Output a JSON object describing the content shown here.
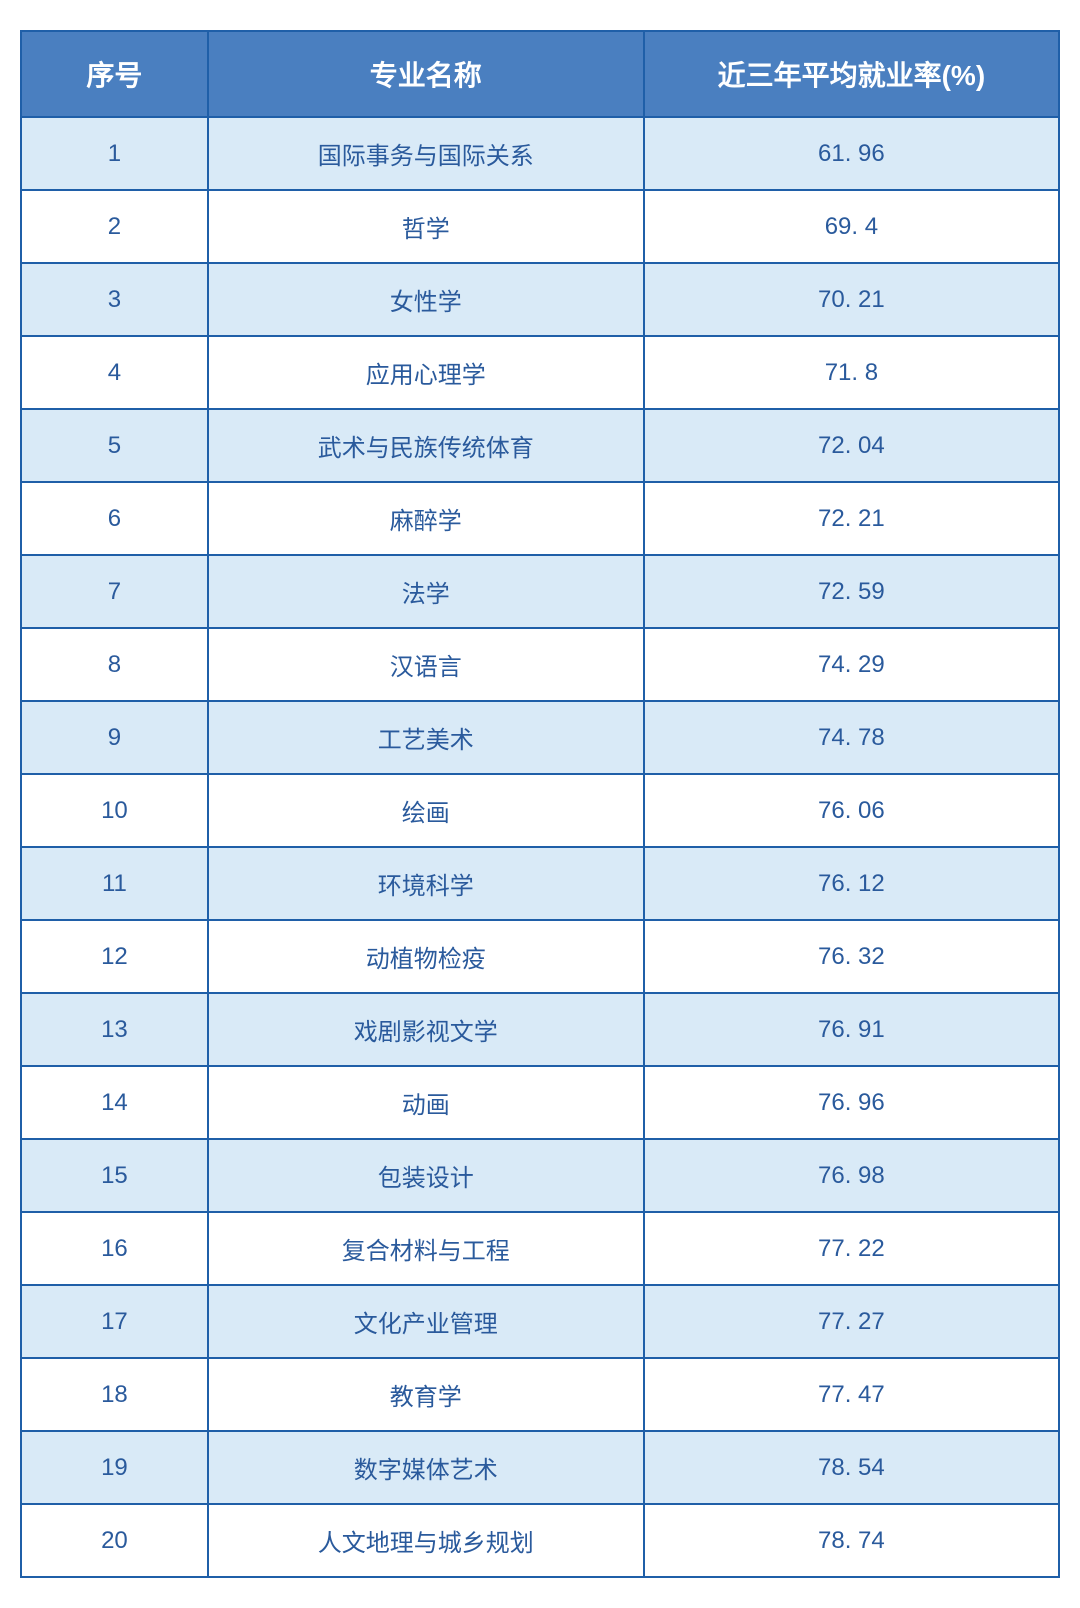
{
  "table": {
    "type": "table",
    "border_color": "#1f5fa8",
    "header_bg": "#4a7fc0",
    "header_text_color": "#ffffff",
    "row_odd_bg": "#d9eaf7",
    "row_even_bg": "#ffffff",
    "cell_text_color": "#2a5a9c",
    "header_fontsize": 28,
    "cell_fontsize": 24,
    "columns": [
      {
        "label": "序号",
        "width": "18%"
      },
      {
        "label": "专业名称",
        "width": "42%"
      },
      {
        "label": "近三年平均就业率(%)",
        "width": "40%"
      }
    ],
    "rows": [
      {
        "seq": "1",
        "name": "国际事务与国际关系",
        "rate": "61. 96"
      },
      {
        "seq": "2",
        "name": "哲学",
        "rate": "69. 4"
      },
      {
        "seq": "3",
        "name": "女性学",
        "rate": "70. 21"
      },
      {
        "seq": "4",
        "name": "应用心理学",
        "rate": "71. 8"
      },
      {
        "seq": "5",
        "name": "武术与民族传统体育",
        "rate": "72. 04"
      },
      {
        "seq": "6",
        "name": "麻醉学",
        "rate": "72. 21"
      },
      {
        "seq": "7",
        "name": "法学",
        "rate": "72. 59"
      },
      {
        "seq": "8",
        "name": "汉语言",
        "rate": "74. 29"
      },
      {
        "seq": "9",
        "name": "工艺美术",
        "rate": "74. 78"
      },
      {
        "seq": "10",
        "name": "绘画",
        "rate": "76. 06"
      },
      {
        "seq": "11",
        "name": "环境科学",
        "rate": "76. 12"
      },
      {
        "seq": "12",
        "name": "动植物检疫",
        "rate": "76. 32"
      },
      {
        "seq": "13",
        "name": "戏剧影视文学",
        "rate": "76. 91"
      },
      {
        "seq": "14",
        "name": "动画",
        "rate": "76. 96"
      },
      {
        "seq": "15",
        "name": "包装设计",
        "rate": "76. 98"
      },
      {
        "seq": "16",
        "name": "复合材料与工程",
        "rate": "77. 22"
      },
      {
        "seq": "17",
        "name": "文化产业管理",
        "rate": "77. 27"
      },
      {
        "seq": "18",
        "name": "教育学",
        "rate": "77. 47"
      },
      {
        "seq": "19",
        "name": "数字媒体艺术",
        "rate": "78. 54"
      },
      {
        "seq": "20",
        "name": "人文地理与城乡规划",
        "rate": "78. 74"
      }
    ]
  }
}
